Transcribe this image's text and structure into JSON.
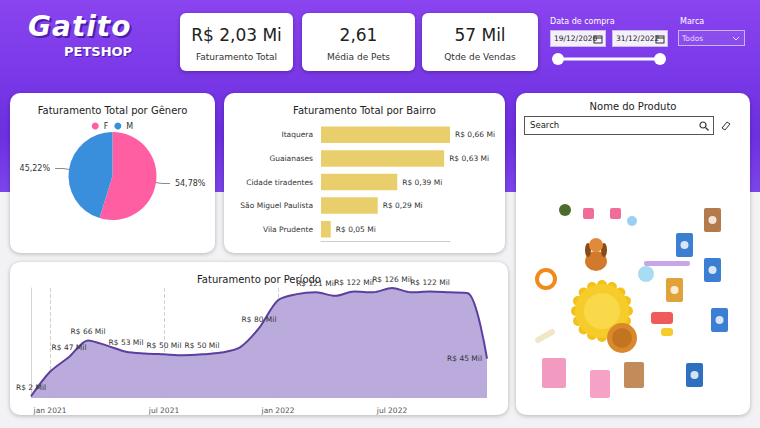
{
  "header": {
    "logo": "Gatito",
    "logo_sub": "PETSHOP"
  },
  "kpis": [
    {
      "value": "R$ 2,03 Mi",
      "label": "Faturamento Total"
    },
    {
      "value": "2,61",
      "label": "Média de Pets"
    },
    {
      "value": "57 Mil",
      "label": "Qtde de Vendas"
    }
  ],
  "filters": {
    "date": {
      "title": "Data de compra",
      "start": "19/12/2020",
      "end": "31/12/2022"
    },
    "brand": {
      "title": "Marca",
      "value": "Todos"
    }
  },
  "product_panel": {
    "title": "Nome do Produto",
    "search_placeholder": "Search"
  },
  "chart_data": [
    {
      "type": "pie",
      "title": "Faturamento Total por Gênero",
      "categories": [
        "F",
        "M"
      ],
      "values": [
        54.78,
        45.22
      ],
      "value_labels": [
        "54,78%",
        "45,22%"
      ],
      "colors": [
        "#ff5fa2",
        "#3a8fdc"
      ],
      "legend": "top",
      "data_labels": true
    },
    {
      "type": "bar",
      "orientation": "horizontal",
      "title": "Faturamento Total por Bairro",
      "categories": [
        "Itaquera",
        "Guaianases",
        "Cidade tiradentes",
        "São Miguel Paulista",
        "Vila Prudente"
      ],
      "values": [
        0.66,
        0.63,
        0.39,
        0.29,
        0.05
      ],
      "value_labels": [
        "R$ 0,66 Mi",
        "R$ 0,63 Mi",
        "R$ 0,39 Mi",
        "R$ 0,29 Mi",
        "R$ 0,05 Mi"
      ],
      "color": "#e8cf6b",
      "xlim": [
        0,
        0.66
      ],
      "data_labels": true,
      "tick_labels": "y"
    },
    {
      "type": "area",
      "title": "Faturamento por Período",
      "categories": [
        null,
        "jan 2021",
        null,
        null,
        null,
        null,
        null,
        "jul 2021",
        null,
        null,
        null,
        null,
        null,
        "jan 2022",
        null,
        null,
        null,
        null,
        null,
        "jul 2022",
        null,
        null,
        null,
        null,
        null
      ],
      "values": [
        2,
        30,
        47,
        66,
        60,
        53,
        51,
        50,
        49,
        50,
        52,
        58,
        80,
        112,
        119,
        121,
        117,
        122,
        121,
        126,
        121,
        122,
        121,
        120,
        45
      ],
      "value_labels": [
        "R$ 2 Mil",
        null,
        "R$ 47 Mil",
        "R$ 66 Mil",
        null,
        "R$ 53 Mil",
        null,
        "R$ 50 Mil",
        null,
        "R$ 50 Mil",
        null,
        null,
        "R$ 80 Mil",
        null,
        null,
        "R$ 121 Mil",
        null,
        "R$ 122 Mil",
        null,
        "R$ 126 Mil",
        null,
        "R$ 122 Mil",
        null,
        null,
        "R$ 45 Mil"
      ],
      "color": "#5b3f9e",
      "ylim": [
        0,
        126
      ],
      "data_labels": true,
      "tick_labels": "x",
      "grid": true
    }
  ]
}
